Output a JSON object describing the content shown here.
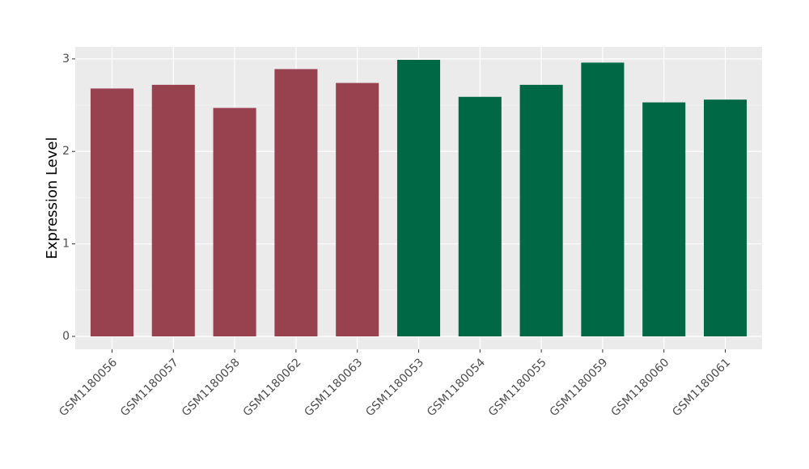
{
  "chart_data": {
    "type": "bar",
    "y_label": "Expression Level",
    "categories": [
      "GSM1180056",
      "GSM1180057",
      "GSM1180058",
      "GSM1180062",
      "GSM1180063",
      "GSM1180053",
      "GSM1180054",
      "GSM1180055",
      "GSM1180059",
      "GSM1180060",
      "GSM1180061"
    ],
    "values": [
      2.68,
      2.72,
      2.47,
      2.89,
      2.74,
      2.99,
      2.59,
      2.72,
      2.96,
      2.53,
      2.56
    ],
    "colors": [
      "#98414f",
      "#98414f",
      "#98414f",
      "#98414f",
      "#98414f",
      "#006844",
      "#006844",
      "#006844",
      "#006844",
      "#006844",
      "#006844"
    ],
    "ylim": [
      -0.14,
      3.13
    ],
    "yticks": [
      0,
      1,
      2,
      3
    ],
    "minor_yticks": [
      0.5,
      1.5,
      2.5
    ],
    "grid": true
  }
}
